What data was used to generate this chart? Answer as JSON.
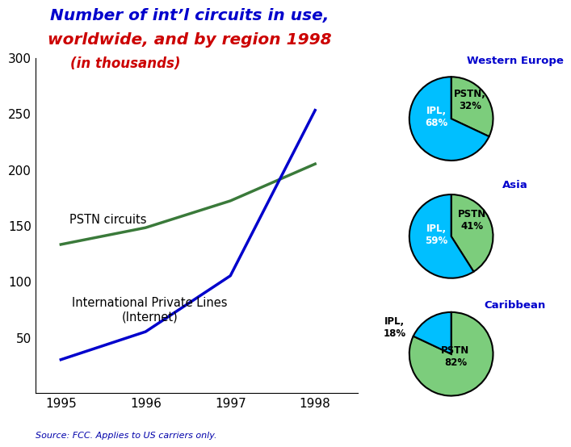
{
  "title_line1": "Number of int’l circuits in use,",
  "title_line2": "worldwide, and by region 1998",
  "title_line3": "(in thousands)",
  "title_color1": "#0000CC",
  "title_color2": "#CC0000",
  "title_color3": "#CC0000",
  "source_text": "Source: FCC. Applies to US carriers only.",
  "line_years": [
    1995,
    1996,
    1997,
    1998
  ],
  "pstn_values": [
    133,
    148,
    172,
    205
  ],
  "ipl_values": [
    30,
    55,
    105,
    253
  ],
  "pstn_color": "#3a7a3a",
  "ipl_color": "#0000CC",
  "ylim": [
    0,
    300
  ],
  "yticks": [
    0,
    50,
    100,
    150,
    200,
    250,
    300
  ],
  "pie_ipl_color": "#00BFFF",
  "pie_pstn_color": "#7CCD7C",
  "regions": [
    "Western Europe",
    "Asia",
    "Caribbean"
  ],
  "region_colors": [
    "#0000CC",
    "#0000CC",
    "#0000CC"
  ],
  "pie_data": [
    {
      "ipl": 68,
      "pstn": 32
    },
    {
      "ipl": 59,
      "pstn": 41
    },
    {
      "ipl": 18,
      "pstn": 82
    }
  ],
  "bg_color": "#FFFFFF"
}
